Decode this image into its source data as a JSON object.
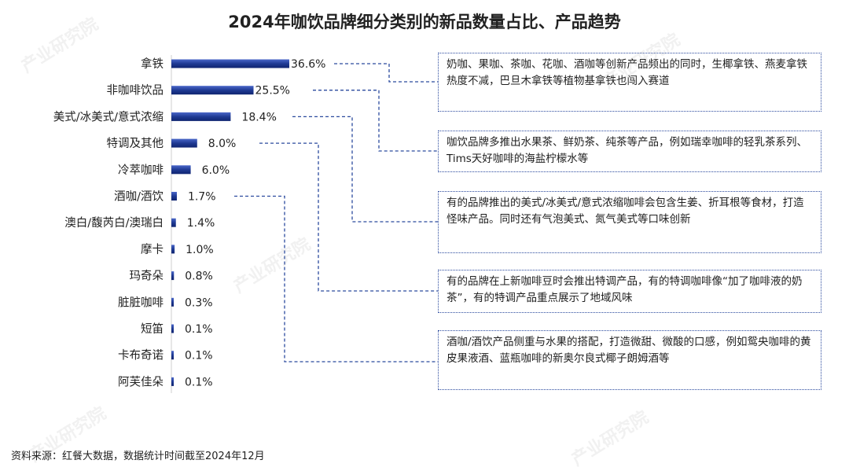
{
  "title": "2024年咖饮品牌细分类别的新品数量占比、产品趋势",
  "chart_data": {
    "type": "bar",
    "orientation": "horizontal",
    "categories": [
      "拿铁",
      "非咖啡饮品",
      "美式/冰美式/意式浓缩",
      "特调及其他",
      "冷萃咖啡",
      "酒咖/酒饮",
      "澳白/馥芮白/澳瑞白",
      "摩卡",
      "玛奇朵",
      "脏脏咖啡",
      "短笛",
      "卡布奇诺",
      "阿芙佳朵"
    ],
    "values": [
      36.6,
      25.5,
      18.4,
      8.0,
      6.0,
      1.7,
      1.4,
      1.0,
      0.8,
      0.3,
      0.1,
      0.1,
      0.1
    ],
    "value_labels": [
      "36.6%",
      "25.5%",
      "18.4%",
      "8.0%",
      "6.0%",
      "1.7%",
      "1.4%",
      "1.0%",
      "0.8%",
      "0.3%",
      "0.1%",
      "0.1%",
      "0.1%"
    ],
    "unit": "%",
    "bar_color": "#1f3a93",
    "grid": false,
    "legend": "none"
  },
  "annotations": [
    {
      "text": "奶咖、果咖、茶咖、花咖、酒咖等创新产品频出的同时，生椰拿铁、燕麦拿铁热度不减，巴旦木拿铁等植物基拿铁也闯入赛道"
    },
    {
      "text": "咖饮品牌多推出水果茶、鲜奶茶、纯茶等产品，例如瑞幸咖啡的轻乳茶系列、Tims天好咖啡的海盐柠檬水等"
    },
    {
      "text": "有的品牌推出的美式/冰美式/意式浓缩咖啡会包含生姜、折耳根等食材，打造怪味产品。同时还有气泡美式、氮气美式等口味创新"
    },
    {
      "text": "有的品牌在上新咖啡豆时会推出特调产品，有的特调咖啡像“加了咖啡液的奶茶”，有的特调产品重点展示了地域风味"
    },
    {
      "text": "酒咖/酒饮产品侧重与水果的搭配，打造微甜、微酸的口感，例如鸳央咖啡的黄皮果液酒、蓝瓶咖啡的新奥尔良式椰子朗姆酒等"
    }
  ],
  "source": "资料来源：红餐大数据，数据统计时间截至2024年12月",
  "watermark": "产业研究院",
  "colors": {
    "bar": "#1f3a93",
    "connector": "#2b4a9e",
    "note_border": "#2b4a9e"
  }
}
